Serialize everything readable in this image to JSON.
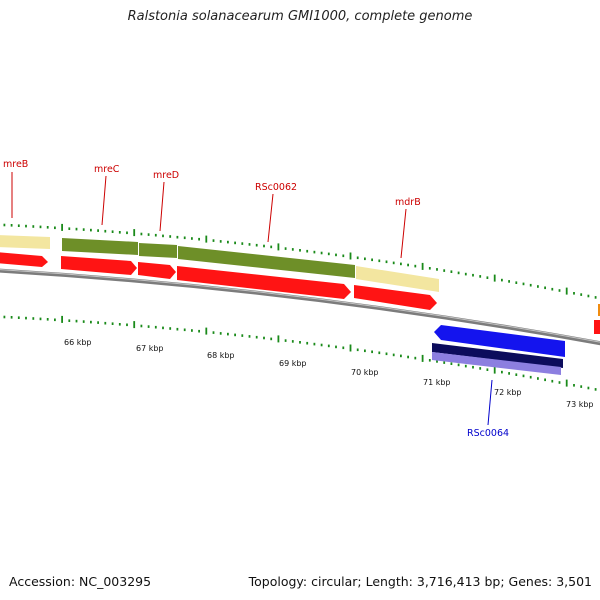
{
  "title": "Ralstonia solanacearum GMI1000, complete genome",
  "footer": {
    "accession": "Accession: NC_003295",
    "summary": "Topology: circular; Length: 3,716,413 bp; Genes: 3,501"
  },
  "colors": {
    "tick": "#1a8a1a",
    "backbone": "#8a8a8a",
    "forward_label": "#cc0000",
    "reverse_label": "#0000cc"
  },
  "scale_labels": [
    "66 kbp",
    "67 kbp",
    "68 kbp",
    "69 kbp",
    "70 kbp",
    "71 kbp",
    "72 kbp",
    "73 kbp"
  ],
  "gene_labels": [
    {
      "name": "mreB",
      "strand": "forward"
    },
    {
      "name": "mreC",
      "strand": "forward"
    },
    {
      "name": "mreD",
      "strand": "forward"
    },
    {
      "name": "RSc0062",
      "strand": "forward"
    },
    {
      "name": "mdrB",
      "strand": "forward"
    },
    {
      "name": "RSc0064",
      "strand": "reverse"
    }
  ]
}
